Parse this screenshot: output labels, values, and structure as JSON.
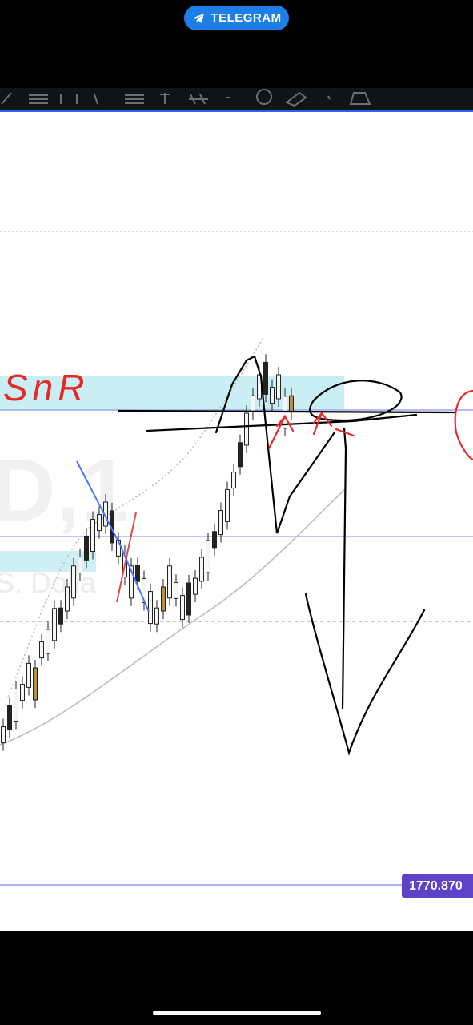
{
  "status_bar": {
    "telegram_label": "TELEGRAM",
    "telegram_icon": "paper-plane-icon",
    "telegram_color": "#1e7ee8"
  },
  "toolbar": {
    "accent_color": "#2962ff",
    "tools": [
      "trend-line-icon",
      "fib-icon",
      "brush-icon",
      "text-icon",
      "pattern-icon",
      "ruler-icon",
      "emoji-icon",
      "eraser-icon",
      "measure-icon"
    ]
  },
  "chart": {
    "watermark_symbol": "D,1",
    "watermark_subtitle": "S. Dolla",
    "annotation_text": "SnR",
    "price_label": "1770.870",
    "price_label_color": "#5e42c7",
    "zone_color": "#c9eef3"
  },
  "chart_data": {
    "type": "candlestick",
    "title": "",
    "price_line": 1770.87,
    "series": [
      {
        "name": "",
        "values": [
          0.08,
          0.12,
          0.15,
          0.18,
          0.22,
          0.2,
          0.28,
          0.3,
          0.34,
          0.36,
          0.4,
          0.44,
          0.48,
          0.52,
          0.55,
          0.58,
          0.6,
          0.57,
          0.52,
          0.48,
          0.44,
          0.46,
          0.42,
          0.38,
          0.36,
          0.4,
          0.44,
          0.42,
          0.38,
          0.4,
          0.43,
          0.47,
          0.5,
          0.54,
          0.58,
          0.62,
          0.68,
          0.74,
          0.8,
          0.86,
          0.9,
          0.92,
          0.88,
          0.9,
          0.84,
          0.86
        ]
      }
    ]
  }
}
